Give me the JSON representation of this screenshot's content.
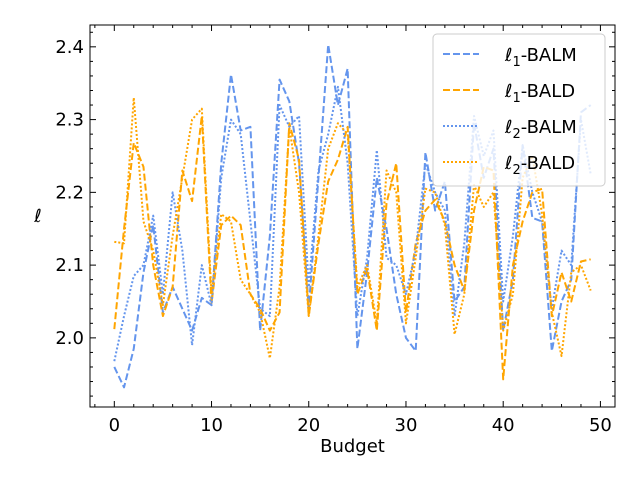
{
  "chart_data": {
    "type": "line",
    "title": "",
    "xlabel": "Budget",
    "ylabel": "ℓ",
    "xlim": [
      -2.5,
      51.5
    ],
    "ylim": [
      1.905,
      2.43
    ],
    "xticks": [
      0,
      10,
      20,
      30,
      40,
      50
    ],
    "xtick_labels": [
      "0",
      "10",
      "20",
      "30",
      "40",
      "50"
    ],
    "yticks": [
      2.0,
      2.1,
      2.2,
      2.3,
      2.4
    ],
    "ytick_labels": [
      "2.0",
      "2.1",
      "2.2",
      "2.3",
      "2.4"
    ],
    "grid": false,
    "legend_position": "top-right",
    "x": [
      0,
      1,
      2,
      3,
      4,
      5,
      6,
      7,
      8,
      9,
      10,
      11,
      12,
      13,
      14,
      15,
      16,
      17,
      18,
      19,
      20,
      21,
      22,
      23,
      24,
      25,
      26,
      27,
      28,
      29,
      30,
      31,
      32,
      33,
      34,
      35,
      36,
      37,
      38,
      39,
      40,
      41,
      42,
      43,
      44,
      45,
      46,
      47,
      48,
      49
    ],
    "series": [
      {
        "name": "ℓ1-BALM",
        "sub": "1",
        "suffix": "-BALM",
        "color": "#6495ED",
        "dash": "dashed",
        "values": [
          1.96,
          1.932,
          1.985,
          2.09,
          2.155,
          2.035,
          2.07,
          2.04,
          2.01,
          2.055,
          2.045,
          2.24,
          2.362,
          2.285,
          2.29,
          2.01,
          2.14,
          2.355,
          2.325,
          2.24,
          2.04,
          2.22,
          2.403,
          2.32,
          2.37,
          1.985,
          2.09,
          2.22,
          2.15,
          2.06,
          2.0,
          1.982,
          2.255,
          2.175,
          2.215,
          2.05,
          2.07,
          2.295,
          2.22,
          2.26,
          2.01,
          2.08,
          2.265,
          2.165,
          2.16,
          1.982,
          2.05,
          2.08,
          2.31,
          2.32
        ]
      },
      {
        "name": "ℓ1-BALD",
        "sub": "1",
        "suffix": "-BALD",
        "color": "#FFA500",
        "dash": "dashed",
        "values": [
          2.012,
          2.15,
          2.268,
          2.235,
          2.1,
          2.03,
          2.07,
          2.23,
          2.188,
          2.305,
          2.048,
          2.155,
          2.168,
          2.155,
          2.06,
          2.04,
          2.01,
          2.035,
          2.295,
          2.245,
          2.03,
          2.13,
          2.215,
          2.245,
          2.29,
          2.06,
          2.095,
          2.01,
          2.185,
          2.24,
          2.035,
          2.13,
          2.175,
          2.19,
          2.16,
          2.1,
          2.065,
          2.175,
          2.235,
          2.23,
          1.943,
          2.1,
          2.16,
          2.2,
          2.205,
          2.03,
          2.09,
          2.05,
          2.105,
          2.108
        ]
      },
      {
        "name": "ℓ2-BALM",
        "sub": "2",
        "suffix": "-BALM",
        "color": "#6495ED",
        "dash": "dotted",
        "values": [
          1.968,
          2.03,
          2.085,
          2.1,
          2.168,
          2.06,
          2.2,
          2.12,
          1.99,
          2.1,
          2.045,
          2.22,
          2.3,
          2.28,
          2.16,
          2.04,
          2.03,
          2.32,
          2.29,
          2.305,
          2.07,
          2.23,
          2.28,
          2.345,
          2.24,
          2.03,
          2.11,
          2.258,
          2.11,
          2.1,
          2.06,
          2.12,
          2.24,
          2.2,
          2.175,
          2.03,
          2.13,
          2.305,
          2.25,
          2.285,
          2.05,
          2.14,
          2.265,
          2.2,
          2.16,
          2.04,
          2.12,
          2.1,
          2.3,
          2.225
        ]
      },
      {
        "name": "ℓ2-BALD",
        "sub": "2",
        "suffix": "-BALD",
        "color": "#FFA500",
        "dash": "dotted",
        "values": [
          2.132,
          2.13,
          2.33,
          2.16,
          2.12,
          2.045,
          2.14,
          2.22,
          2.3,
          2.315,
          2.06,
          2.17,
          2.16,
          2.08,
          2.06,
          2.035,
          1.972,
          2.07,
          2.29,
          2.2,
          2.03,
          2.14,
          2.26,
          2.295,
          2.28,
          2.07,
          2.1,
          2.02,
          2.23,
          2.2,
          2.02,
          2.11,
          2.205,
          2.2,
          2.155,
          2.005,
          2.06,
          2.21,
          2.18,
          2.2,
          2.01,
          2.06,
          2.22,
          2.25,
          2.17,
          2.035,
          1.975,
          2.09,
          2.1,
          2.065
        ]
      }
    ]
  }
}
